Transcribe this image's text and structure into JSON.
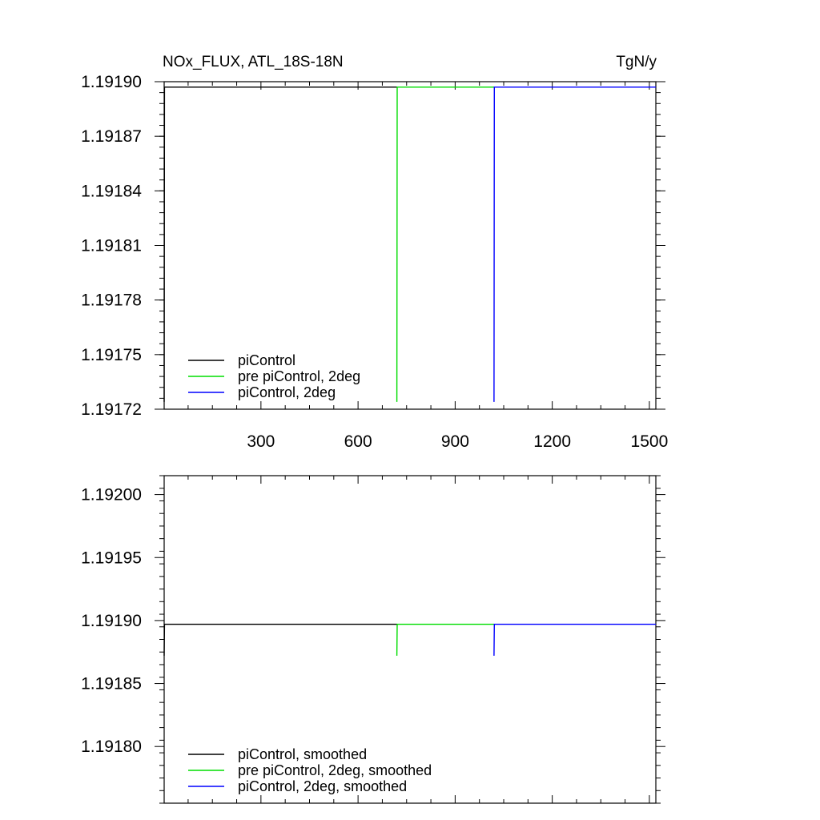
{
  "chart_data": [
    {
      "type": "line",
      "title": "NOx_FLUX, ATL_18S-18N",
      "units": "TgN/y",
      "xlim": [
        1,
        1520
      ],
      "ylim": [
        1.19172,
        1.1919
      ],
      "x_ticks": [
        300,
        600,
        900,
        1200,
        1500
      ],
      "x_tick_labels": [
        "300",
        "600",
        "900",
        "1200",
        "1500"
      ],
      "y_ticks": [
        1.19172,
        1.19175,
        1.19178,
        1.19181,
        1.19184,
        1.19187,
        1.1919
      ],
      "y_tick_labels": [
        "1.19172",
        "1.19175",
        "1.19178",
        "1.19181",
        "1.19184",
        "1.19187",
        "1.19190"
      ],
      "legend_position": "bottom-left",
      "series": [
        {
          "name": "piControl",
          "color": "#000000",
          "x": [
            1,
            2,
            720
          ],
          "y": [
            1.191724,
            1.191897,
            1.191897
          ]
        },
        {
          "name": "pre piControl, 2deg",
          "color": "#00dd00",
          "x": [
            720,
            721,
            1020
          ],
          "y": [
            1.191724,
            1.191897,
            1.191897
          ]
        },
        {
          "name": "piControl, 2deg",
          "color": "#0000ff",
          "x": [
            1020,
            1021,
            1520
          ],
          "y": [
            1.191724,
            1.191897,
            1.191897
          ]
        }
      ]
    },
    {
      "type": "line",
      "xlim": [
        1,
        1520
      ],
      "ylim": [
        1.191755,
        1.192015
      ],
      "x_ticks": [
        300,
        600,
        900,
        1200,
        1500
      ],
      "x_tick_labels": [],
      "y_ticks": [
        1.1918,
        1.19185,
        1.1919,
        1.19195,
        1.192
      ],
      "y_tick_labels": [
        "1.19180",
        "1.19185",
        "1.19190",
        "1.19195",
        "1.19200"
      ],
      "legend_position": "bottom-left",
      "series": [
        {
          "name": "piControl, smoothed",
          "color": "#000000",
          "x": [
            1,
            2,
            720
          ],
          "y": [
            1.191872,
            1.191897,
            1.191897
          ]
        },
        {
          "name": "pre piControl, 2deg, smoothed",
          "color": "#00dd00",
          "x": [
            720,
            721,
            1020
          ],
          "y": [
            1.191872,
            1.191897,
            1.191897
          ]
        },
        {
          "name": "piControl, 2deg, smoothed",
          "color": "#0000ff",
          "x": [
            1020,
            1021,
            1520
          ],
          "y": [
            1.191872,
            1.191897,
            1.191897
          ]
        }
      ]
    }
  ]
}
